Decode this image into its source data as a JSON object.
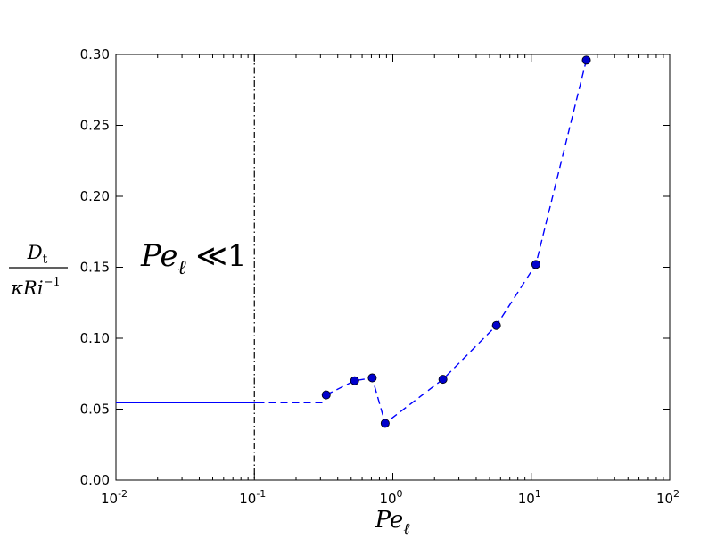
{
  "chart_data": {
    "type": "line",
    "xscale": "log",
    "xlim": [
      0.01,
      100
    ],
    "ylim": [
      0.0,
      0.3
    ],
    "x_ticks": [
      0.01,
      0.1,
      1,
      10,
      100
    ],
    "x_tick_labels": [
      {
        "base": "10",
        "exp": "-2"
      },
      {
        "base": "10",
        "exp": "-1"
      },
      {
        "base": "10",
        "exp": "0"
      },
      {
        "base": "10",
        "exp": "1"
      },
      {
        "base": "10",
        "exp": "2"
      }
    ],
    "y_ticks": [
      0.0,
      0.05,
      0.1,
      0.15,
      0.2,
      0.25,
      0.3
    ],
    "y_tick_labels": [
      "0.00",
      "0.05",
      "0.10",
      "0.15",
      "0.20",
      "0.25",
      "0.30"
    ],
    "xlabel": {
      "base": "Pe",
      "sub": "ℓ"
    },
    "ylabel": {
      "numerator": "D",
      "numerator_sub": "t",
      "denominator": "κRi",
      "denominator_sup": "−1"
    },
    "annotation": {
      "base": "Pe",
      "sub": "ℓ",
      "rest": " ≪1"
    },
    "grid": false,
    "series": [
      {
        "style": "dashed-with-markers",
        "color": "#0000ff",
        "marker_color": "#0000cc",
        "x": [
          0.33,
          0.53,
          0.71,
          0.88,
          2.3,
          5.6,
          10.8,
          25.0
        ],
        "y": [
          0.06,
          0.07,
          0.072,
          0.04,
          0.071,
          0.109,
          0.152,
          0.296
        ]
      },
      {
        "style": "solid",
        "color": "#0000ff",
        "x": [
          0.01,
          0.105
        ],
        "y": [
          0.0545,
          0.0545
        ]
      },
      {
        "style": "dashed",
        "color": "#0000ff",
        "x": [
          0.105,
          0.33
        ],
        "y": [
          0.0545,
          0.0545
        ]
      }
    ],
    "vline": {
      "x": 0.1,
      "style": "dash-dot",
      "color": "#000000"
    }
  }
}
